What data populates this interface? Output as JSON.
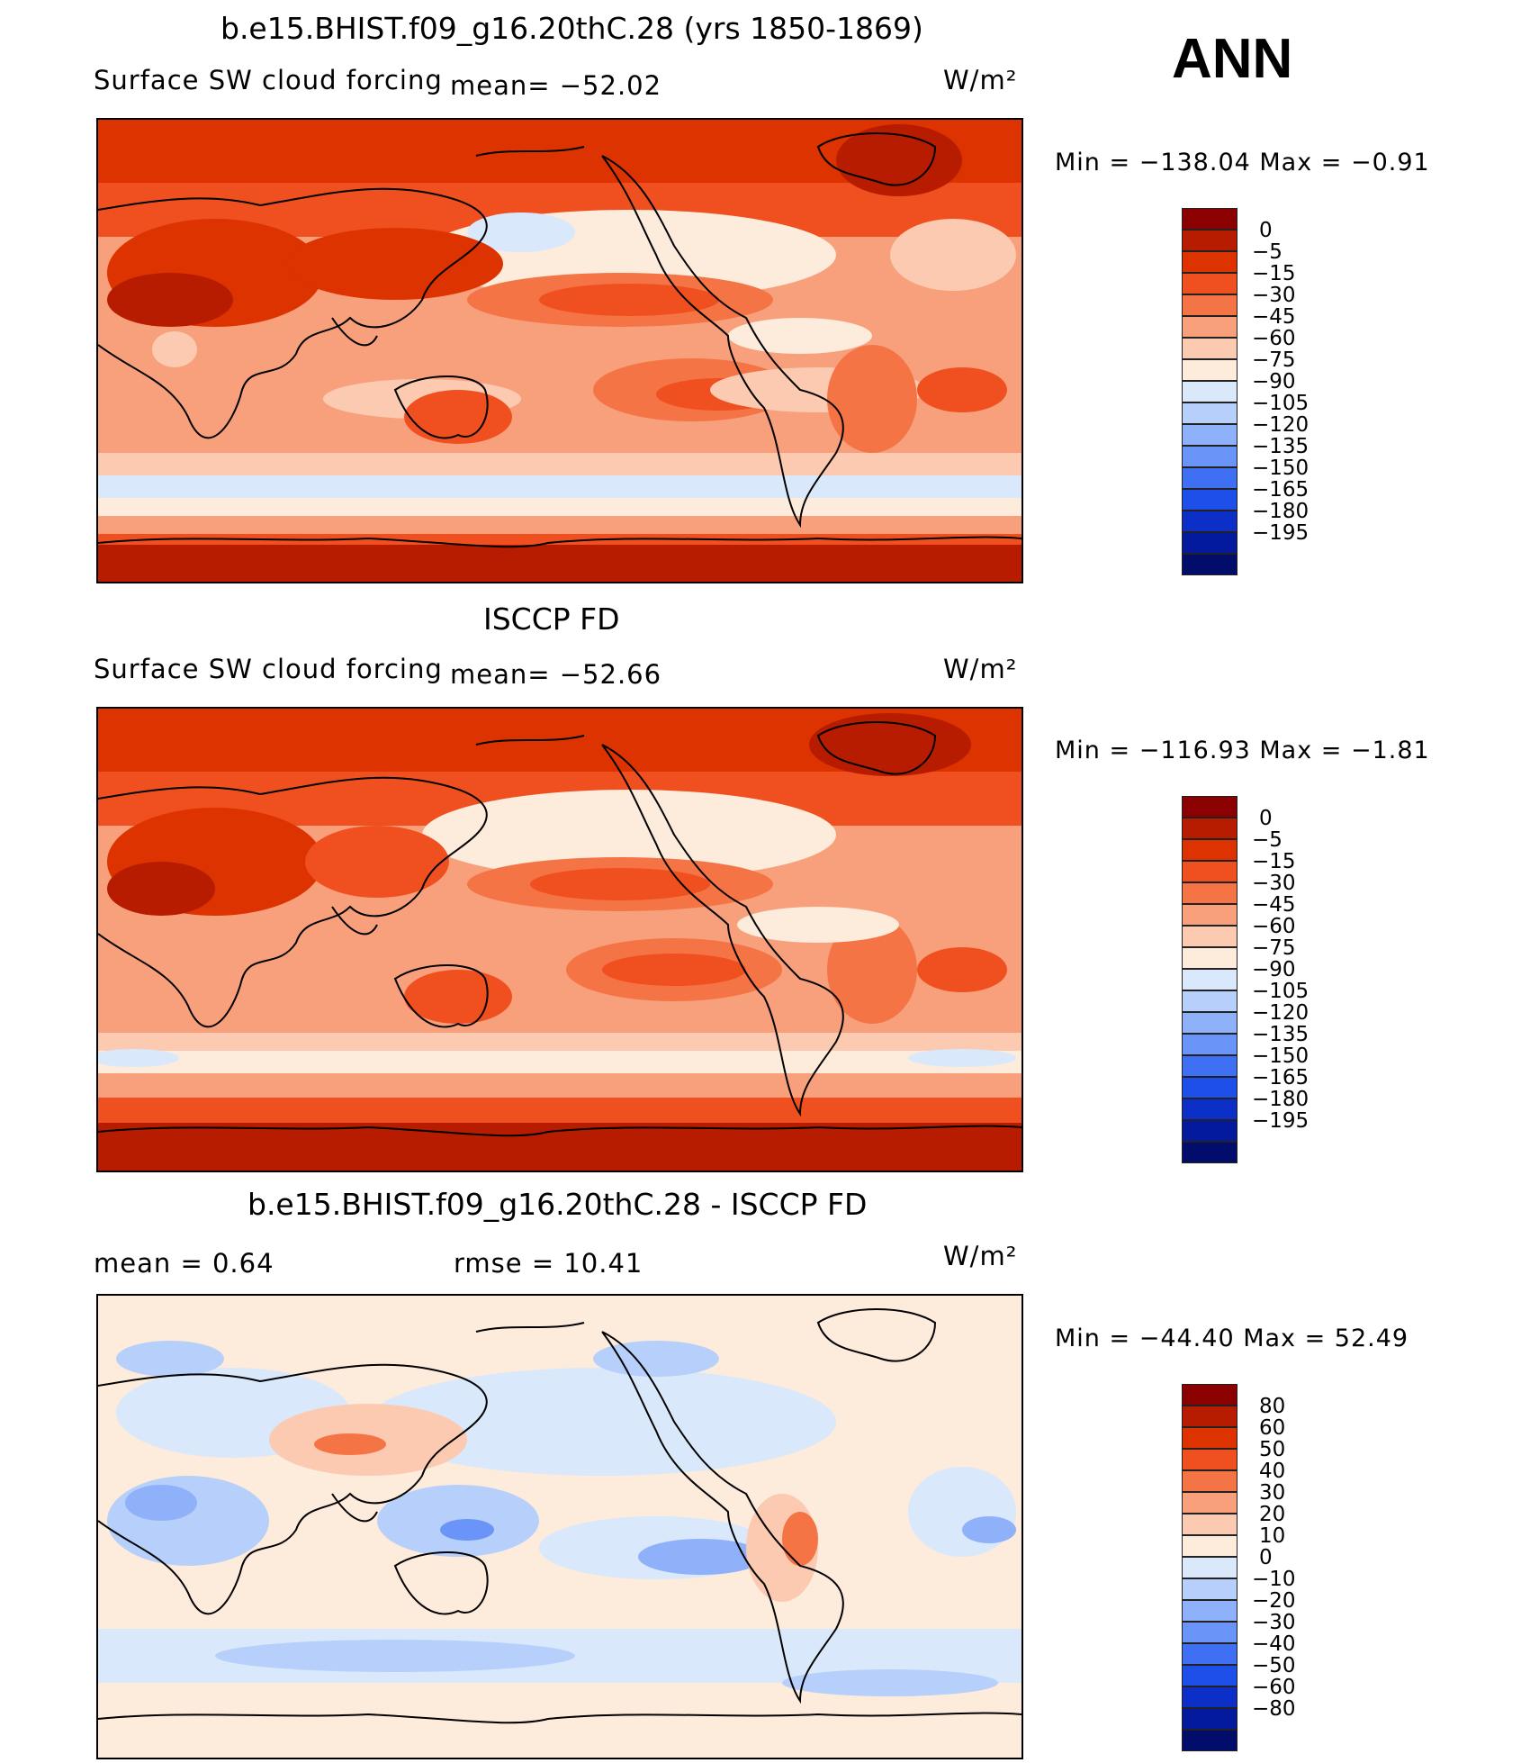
{
  "header": {
    "season": "ANN"
  },
  "panels": [
    {
      "title": "b.e15.BHIST.f09_g16.20thC.28 (yrs 1850-1869)",
      "left_label": "Surface SW cloud forcing",
      "mean_text": "mean= −52.02",
      "units_text": "W/m²",
      "minmax_text": "Min  =  −138.04  Max  =    −0.91",
      "colors": [
        "#8b0000",
        "#b81c00",
        "#dd3300",
        "#f05020",
        "#f57445",
        "#f8a07c",
        "#fbcab0",
        "#fdebdc",
        "#d9e8fb",
        "#b7cffb",
        "#8fb1fa",
        "#6a94f7",
        "#3f70f3",
        "#1e4fe8",
        "#0c2fc8",
        "#041a9e",
        "#020d6b"
      ],
      "ticks": [
        "0",
        "−5",
        "−15",
        "−30",
        "−45",
        "−60",
        "−75",
        "−90",
        "−105",
        "−120",
        "−135",
        "−150",
        "−165",
        "−180",
        "−195"
      ]
    },
    {
      "title": "ISCCP FD",
      "left_label": "Surface SW cloud forcing",
      "mean_text": "mean= −52.66",
      "units_text": "W/m²",
      "minmax_text": "Min  =  −116.93  Max  =    −1.81",
      "colors": [
        "#8b0000",
        "#b81c00",
        "#dd3300",
        "#f05020",
        "#f57445",
        "#f8a07c",
        "#fbcab0",
        "#fdebdc",
        "#d9e8fb",
        "#b7cffb",
        "#8fb1fa",
        "#6a94f7",
        "#3f70f3",
        "#1e4fe8",
        "#0c2fc8",
        "#041a9e",
        "#020d6b"
      ],
      "ticks": [
        "0",
        "−5",
        "−15",
        "−30",
        "−45",
        "−60",
        "−75",
        "−90",
        "−105",
        "−120",
        "−135",
        "−150",
        "−165",
        "−180",
        "−195"
      ]
    },
    {
      "title": "b.e15.BHIST.f09_g16.20thC.28 - ISCCP FD",
      "left_label": "mean  =      0.64",
      "mean_text": "rmse  =     10.41",
      "units_text": "W/m²",
      "minmax_text": "Min  =  −44.40  Max  =    52.49",
      "colors": [
        "#8b0000",
        "#b81c00",
        "#dd3300",
        "#f05020",
        "#f57445",
        "#f8a07c",
        "#fbcab0",
        "#fdebdc",
        "#d9e8fb",
        "#b7cffb",
        "#8fb1fa",
        "#6a94f7",
        "#3f70f3",
        "#1e4fe8",
        "#0c2fc8",
        "#041a9e",
        "#020d6b"
      ],
      "ticks": [
        "80",
        "60",
        "50",
        "40",
        "30",
        "20",
        "10",
        "0",
        "−10",
        "−20",
        "−30",
        "−40",
        "−50",
        "−60",
        "−80"
      ]
    }
  ]
}
